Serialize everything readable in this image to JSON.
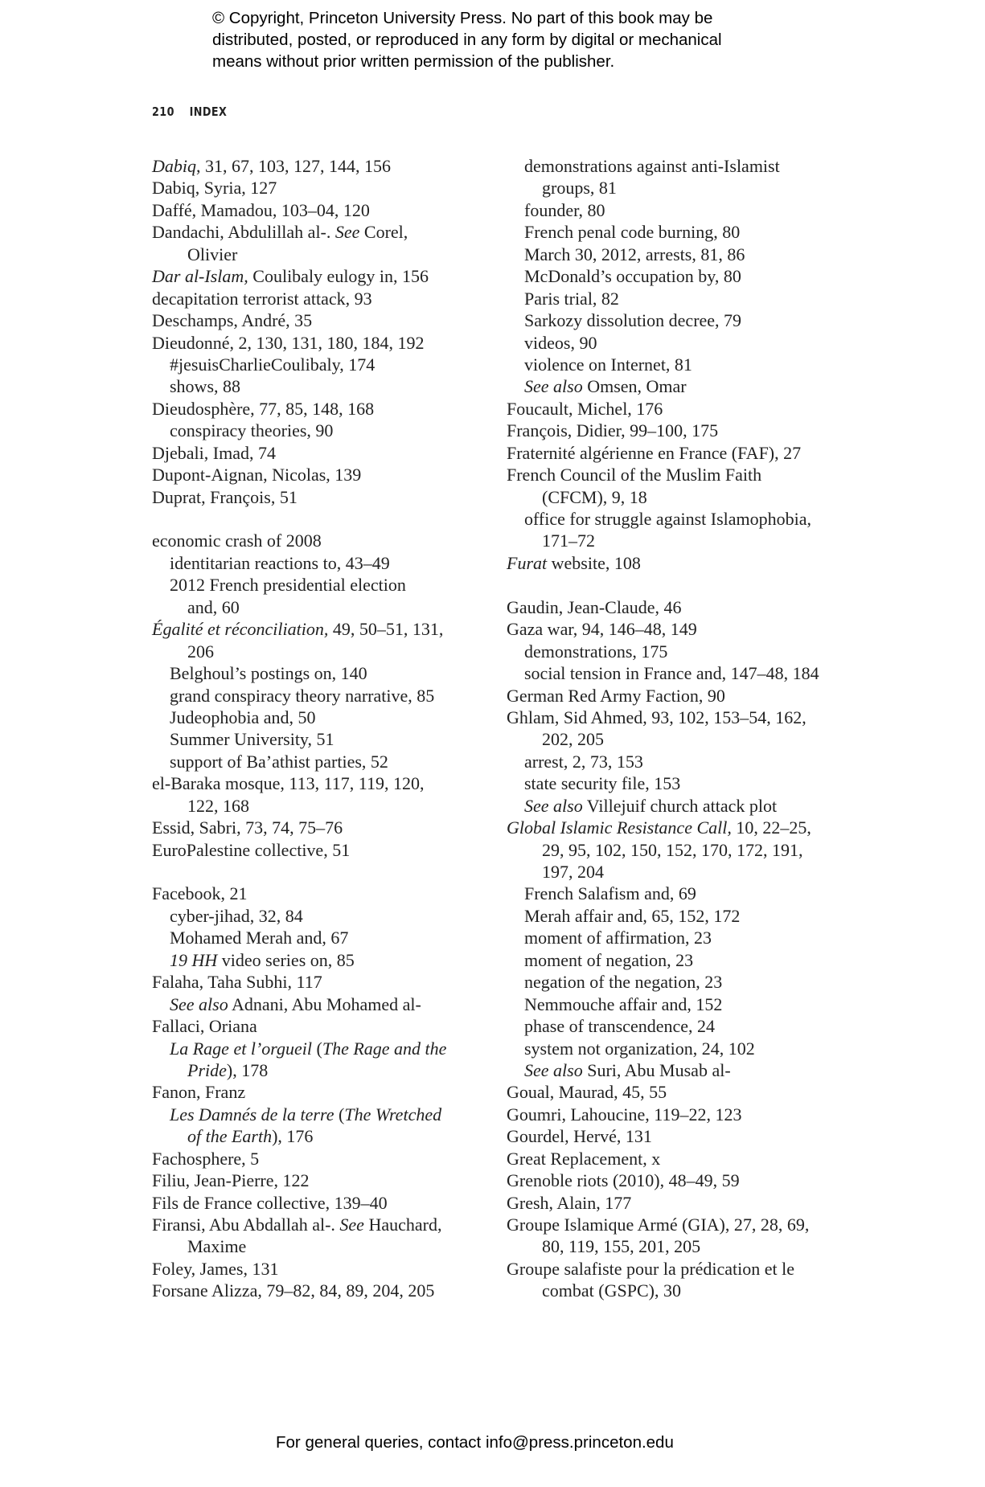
{
  "notice": {
    "lines": [
      "© Copyright, Princeton University Press. No part of this book may be",
      "distributed, posted, or reproduced in any form by digital or mechanical",
      "means without prior written permission of the publisher."
    ]
  },
  "running_head": {
    "page_number": "210",
    "title": "INDEX"
  },
  "left": [
    {
      "lvl": 0,
      "segs": [
        {
          "t": "Dabiq",
          "i": true
        },
        {
          "t": ", 31, 67, 103, 127, 144, 156"
        }
      ]
    },
    {
      "lvl": 0,
      "segs": [
        {
          "t": "Dabiq, Syria, 127"
        }
      ]
    },
    {
      "lvl": 0,
      "segs": [
        {
          "t": "Daffé, Mamadou, 103–04, 120"
        }
      ]
    },
    {
      "lvl": 0,
      "segs": [
        {
          "t": "Dandachi, Abdulillah al-. "
        },
        {
          "t": "See",
          "i": true
        },
        {
          "t": " Corel,"
        }
      ]
    },
    {
      "lvl": 2,
      "segs": [
        {
          "t": "Olivier"
        }
      ]
    },
    {
      "lvl": 0,
      "segs": [
        {
          "t": "Dar al-Islam,",
          "i": true
        },
        {
          "t": " Coulibaly eulogy in, 156"
        }
      ]
    },
    {
      "lvl": 0,
      "segs": [
        {
          "t": "decapitation terrorist attack, 93"
        }
      ]
    },
    {
      "lvl": 0,
      "segs": [
        {
          "t": "Deschamps, André, 35"
        }
      ]
    },
    {
      "lvl": 0,
      "segs": [
        {
          "t": "Dieudonné, 2, 130, 131, 180, 184, 192"
        }
      ]
    },
    {
      "lvl": 1,
      "segs": [
        {
          "t": "#jesuisCharlieCoulibaly, 174"
        }
      ]
    },
    {
      "lvl": 1,
      "segs": [
        {
          "t": "shows, 88"
        }
      ]
    },
    {
      "lvl": 0,
      "segs": [
        {
          "t": "Dieudosphère, 77, 85, 148, 168"
        }
      ]
    },
    {
      "lvl": 1,
      "segs": [
        {
          "t": "conspiracy theories, 90"
        }
      ]
    },
    {
      "lvl": 0,
      "segs": [
        {
          "t": "Djebali, Imad, 74"
        }
      ]
    },
    {
      "lvl": 0,
      "segs": [
        {
          "t": "Dupont-Aignan, Nicolas, 139"
        }
      ]
    },
    {
      "lvl": 0,
      "segs": [
        {
          "t": "Duprat, François, 51"
        }
      ]
    },
    {
      "lvl": 0,
      "segs": []
    },
    {
      "lvl": 0,
      "segs": [
        {
          "t": "economic crash of 2008"
        }
      ]
    },
    {
      "lvl": 1,
      "segs": [
        {
          "t": "identitarian reactions to, 43–49"
        }
      ]
    },
    {
      "lvl": 1,
      "segs": [
        {
          "t": "2012 French presidential election"
        }
      ]
    },
    {
      "lvl": 2,
      "segs": [
        {
          "t": "and, 60"
        }
      ]
    },
    {
      "lvl": 0,
      "segs": [
        {
          "t": "Égalité et réconciliation,",
          "i": true
        },
        {
          "t": " 49, 50–51, 131,"
        }
      ]
    },
    {
      "lvl": 2,
      "segs": [
        {
          "t": "206"
        }
      ]
    },
    {
      "lvl": 1,
      "segs": [
        {
          "t": "Belghoul’s postings on, 140"
        }
      ]
    },
    {
      "lvl": 1,
      "segs": [
        {
          "t": "grand conspiracy theory narrative, 85"
        }
      ]
    },
    {
      "lvl": 1,
      "segs": [
        {
          "t": "Judeophobia and, 50"
        }
      ]
    },
    {
      "lvl": 1,
      "segs": [
        {
          "t": "Summer University, 51"
        }
      ]
    },
    {
      "lvl": 1,
      "segs": [
        {
          "t": "support of Ba’athist parties, 52"
        }
      ]
    },
    {
      "lvl": 0,
      "segs": [
        {
          "t": "el-Baraka mosque, 113, 117, 119, 120,"
        }
      ]
    },
    {
      "lvl": 2,
      "segs": [
        {
          "t": "122, 168"
        }
      ]
    },
    {
      "lvl": 0,
      "segs": [
        {
          "t": "Essid, Sabri, 73, 74, 75–76"
        }
      ]
    },
    {
      "lvl": 0,
      "segs": [
        {
          "t": "EuroPalestine collective, 51"
        }
      ]
    },
    {
      "lvl": 0,
      "segs": []
    },
    {
      "lvl": 0,
      "segs": [
        {
          "t": "Facebook, 21"
        }
      ]
    },
    {
      "lvl": 1,
      "segs": [
        {
          "t": "cyber-jihad, 32, 84"
        }
      ]
    },
    {
      "lvl": 1,
      "segs": [
        {
          "t": "Mohamed Merah and, 67"
        }
      ]
    },
    {
      "lvl": 1,
      "segs": [
        {
          "t": "19 HH",
          "i": true
        },
        {
          "t": " video series on, 85"
        }
      ]
    },
    {
      "lvl": 0,
      "segs": [
        {
          "t": "Falaha, Taha Subhi, 117"
        }
      ]
    },
    {
      "lvl": 1,
      "segs": [
        {
          "t": "See also",
          "i": true
        },
        {
          "t": " Adnani, Abu Mohamed al-"
        }
      ]
    },
    {
      "lvl": 0,
      "segs": [
        {
          "t": "Fallaci, Oriana"
        }
      ]
    },
    {
      "lvl": 1,
      "segs": [
        {
          "t": "La Rage et l’orgueil",
          "i": true
        },
        {
          "t": " ("
        },
        {
          "t": "The Rage and the",
          "i": true
        }
      ]
    },
    {
      "lvl": 2,
      "segs": [
        {
          "t": "Pride",
          "i": true
        },
        {
          "t": "), 178"
        }
      ]
    },
    {
      "lvl": 0,
      "segs": [
        {
          "t": "Fanon, Franz"
        }
      ]
    },
    {
      "lvl": 1,
      "segs": [
        {
          "t": "Les Damnés de la terre",
          "i": true
        },
        {
          "t": " ("
        },
        {
          "t": "The Wretched",
          "i": true
        }
      ]
    },
    {
      "lvl": 2,
      "segs": [
        {
          "t": "of the Earth",
          "i": true
        },
        {
          "t": "), 176"
        }
      ]
    },
    {
      "lvl": 0,
      "segs": [
        {
          "t": "Fachosphere, 5"
        }
      ]
    },
    {
      "lvl": 0,
      "segs": [
        {
          "t": "Filiu, Jean-Pierre, 122"
        }
      ]
    },
    {
      "lvl": 0,
      "segs": [
        {
          "t": "Fils de France collective, 139–40"
        }
      ]
    },
    {
      "lvl": 0,
      "segs": [
        {
          "t": "Firansi, Abu Abdallah al-. "
        },
        {
          "t": "See",
          "i": true
        },
        {
          "t": " Hauchard,"
        }
      ]
    },
    {
      "lvl": 2,
      "segs": [
        {
          "t": "Maxime"
        }
      ]
    },
    {
      "lvl": 0,
      "segs": [
        {
          "t": "Foley, James, 131"
        }
      ]
    },
    {
      "lvl": 0,
      "segs": [
        {
          "t": "Forsane Alizza, 79–82, 84, 89, 204, 205"
        }
      ]
    }
  ],
  "right": [
    {
      "lvl": 1,
      "segs": [
        {
          "t": "demonstrations against anti-Islamist"
        }
      ]
    },
    {
      "lvl": 2,
      "segs": [
        {
          "t": "groups, 81"
        }
      ]
    },
    {
      "lvl": 1,
      "segs": [
        {
          "t": "founder, 80"
        }
      ]
    },
    {
      "lvl": 1,
      "segs": [
        {
          "t": "French penal code burning, 80"
        }
      ]
    },
    {
      "lvl": 1,
      "segs": [
        {
          "t": "March 30, 2012, arrests, 81, 86"
        }
      ]
    },
    {
      "lvl": 1,
      "segs": [
        {
          "t": "McDonald’s occupation by, 80"
        }
      ]
    },
    {
      "lvl": 1,
      "segs": [
        {
          "t": "Paris trial, 82"
        }
      ]
    },
    {
      "lvl": 1,
      "segs": [
        {
          "t": "Sarkozy dissolution decree, 79"
        }
      ]
    },
    {
      "lvl": 1,
      "segs": [
        {
          "t": "videos, 90"
        }
      ]
    },
    {
      "lvl": 1,
      "segs": [
        {
          "t": "violence on Internet, 81"
        }
      ]
    },
    {
      "lvl": 1,
      "segs": [
        {
          "t": "See also",
          "i": true
        },
        {
          "t": " Omsen, Omar"
        }
      ]
    },
    {
      "lvl": 0,
      "segs": [
        {
          "t": "Foucault, Michel, 176"
        }
      ]
    },
    {
      "lvl": 0,
      "segs": [
        {
          "t": "François, Didier, 99–100, 175"
        }
      ]
    },
    {
      "lvl": 0,
      "segs": [
        {
          "t": "Fraternité algérienne en France (FAF), 27"
        }
      ]
    },
    {
      "lvl": 0,
      "segs": [
        {
          "t": "French Council of the Muslim Faith"
        }
      ]
    },
    {
      "lvl": 2,
      "segs": [
        {
          "t": "(CFCM), 9, 18"
        }
      ]
    },
    {
      "lvl": 1,
      "segs": [
        {
          "t": "office for struggle against Islamophobia,"
        }
      ]
    },
    {
      "lvl": 2,
      "segs": [
        {
          "t": "171–72"
        }
      ]
    },
    {
      "lvl": 0,
      "segs": [
        {
          "t": "Furat",
          "i": true
        },
        {
          "t": " website, 108"
        }
      ]
    },
    {
      "lvl": 0,
      "segs": []
    },
    {
      "lvl": 0,
      "segs": [
        {
          "t": "Gaudin, Jean-Claude, 46"
        }
      ]
    },
    {
      "lvl": 0,
      "segs": [
        {
          "t": "Gaza war, 94, 146–48, 149"
        }
      ]
    },
    {
      "lvl": 1,
      "segs": [
        {
          "t": "demonstrations, 175"
        }
      ]
    },
    {
      "lvl": 1,
      "segs": [
        {
          "t": "social tension in France and, 147–48, 184"
        }
      ]
    },
    {
      "lvl": 0,
      "segs": [
        {
          "t": "German Red Army Faction, 90"
        }
      ]
    },
    {
      "lvl": 0,
      "segs": [
        {
          "t": "Ghlam, Sid Ahmed, 93, 102, 153–54, 162,"
        }
      ]
    },
    {
      "lvl": 2,
      "segs": [
        {
          "t": "202, 205"
        }
      ]
    },
    {
      "lvl": 1,
      "segs": [
        {
          "t": "arrest, 2, 73, 153"
        }
      ]
    },
    {
      "lvl": 1,
      "segs": [
        {
          "t": "state security file, 153"
        }
      ]
    },
    {
      "lvl": 1,
      "segs": [
        {
          "t": "See also",
          "i": true
        },
        {
          "t": " Villejuif church attack plot"
        }
      ]
    },
    {
      "lvl": 0,
      "segs": [
        {
          "t": "Global Islamic Resistance Call,",
          "i": true
        },
        {
          "t": " 10, 22–25,"
        }
      ]
    },
    {
      "lvl": 2,
      "segs": [
        {
          "t": "29, 95, 102, 150, 152, 170, 172, 191,"
        }
      ]
    },
    {
      "lvl": 2,
      "segs": [
        {
          "t": "197, 204"
        }
      ]
    },
    {
      "lvl": 1,
      "segs": [
        {
          "t": "French Salafism and, 69"
        }
      ]
    },
    {
      "lvl": 1,
      "segs": [
        {
          "t": "Merah affair and, 65, 152, 172"
        }
      ]
    },
    {
      "lvl": 1,
      "segs": [
        {
          "t": "moment of affirmation, 23"
        }
      ]
    },
    {
      "lvl": 1,
      "segs": [
        {
          "t": "moment of negation, 23"
        }
      ]
    },
    {
      "lvl": 1,
      "segs": [
        {
          "t": "negation of the negation, 23"
        }
      ]
    },
    {
      "lvl": 1,
      "segs": [
        {
          "t": "Nemmouche affair and, 152"
        }
      ]
    },
    {
      "lvl": 1,
      "segs": [
        {
          "t": "phase of transcendence, 24"
        }
      ]
    },
    {
      "lvl": 1,
      "segs": [
        {
          "t": "system not organization, 24, 102"
        }
      ]
    },
    {
      "lvl": 1,
      "segs": [
        {
          "t": "See also",
          "i": true
        },
        {
          "t": " Suri, Abu Musab al-"
        }
      ]
    },
    {
      "lvl": 0,
      "segs": [
        {
          "t": "Goual, Maurad, 45, 55"
        }
      ]
    },
    {
      "lvl": 0,
      "segs": [
        {
          "t": "Goumri, Lahoucine, 119–22, 123"
        }
      ]
    },
    {
      "lvl": 0,
      "segs": [
        {
          "t": "Gourdel, Hervé, 131"
        }
      ]
    },
    {
      "lvl": 0,
      "segs": [
        {
          "t": "Great Replacement, x"
        }
      ]
    },
    {
      "lvl": 0,
      "segs": [
        {
          "t": "Grenoble riots (2010), 48–49, 59"
        }
      ]
    },
    {
      "lvl": 0,
      "segs": [
        {
          "t": "Gresh, Alain, 177"
        }
      ]
    },
    {
      "lvl": 0,
      "segs": [
        {
          "t": "Groupe Islamique Armé (GIA), 27, 28, 69,"
        }
      ]
    },
    {
      "lvl": 2,
      "segs": [
        {
          "t": "80, 119, 155, 201, 205"
        }
      ]
    },
    {
      "lvl": 0,
      "segs": [
        {
          "t": "Groupe salafiste pour la prédication et le"
        }
      ]
    },
    {
      "lvl": 2,
      "segs": [
        {
          "t": "combat (GSPC), 30"
        }
      ]
    }
  ],
  "footer": {
    "text": "For general queries, contact info@press.princeton.edu"
  }
}
